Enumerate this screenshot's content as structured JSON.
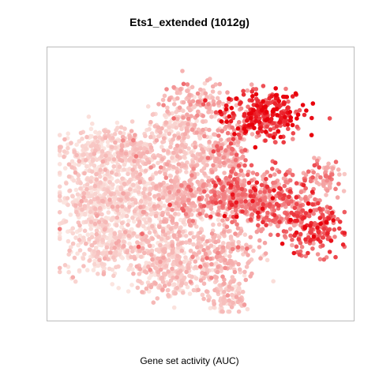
{
  "chart_data": {
    "type": "scatter",
    "title": "Ets1_extended (1012g)",
    "xlabel": "Gene set activity (AUC)",
    "ylabel": "",
    "axes_visible": false,
    "grid": false,
    "colors": {
      "low": "#fbe4df",
      "mid": "#f4a3a3",
      "high": "#e8000b",
      "border": "#bbbbbb"
    },
    "color_scale": "gene set activity, light pink (low) to red (high)",
    "clusters": [
      {
        "x": 0.47,
        "y": 0.82,
        "sx": 0.06,
        "sy": 0.05,
        "n": 120,
        "activity": 0.35
      },
      {
        "x": 0.42,
        "y": 0.74,
        "sx": 0.05,
        "sy": 0.03,
        "n": 70,
        "activity": 0.12
      },
      {
        "x": 0.71,
        "y": 0.78,
        "sx": 0.07,
        "sy": 0.05,
        "n": 260,
        "activity": 0.85
      },
      {
        "x": 0.6,
        "y": 0.72,
        "sx": 0.05,
        "sy": 0.06,
        "n": 90,
        "activity": 0.45
      },
      {
        "x": 0.15,
        "y": 0.63,
        "sx": 0.07,
        "sy": 0.05,
        "n": 260,
        "activity": 0.08
      },
      {
        "x": 0.28,
        "y": 0.63,
        "sx": 0.05,
        "sy": 0.04,
        "n": 120,
        "activity": 0.22
      },
      {
        "x": 0.44,
        "y": 0.62,
        "sx": 0.06,
        "sy": 0.05,
        "n": 180,
        "activity": 0.18
      },
      {
        "x": 0.58,
        "y": 0.62,
        "sx": 0.04,
        "sy": 0.04,
        "n": 90,
        "activity": 0.4
      },
      {
        "x": 0.13,
        "y": 0.45,
        "sx": 0.06,
        "sy": 0.06,
        "n": 280,
        "activity": 0.08
      },
      {
        "x": 0.28,
        "y": 0.45,
        "sx": 0.06,
        "sy": 0.07,
        "n": 300,
        "activity": 0.12
      },
      {
        "x": 0.44,
        "y": 0.45,
        "sx": 0.05,
        "sy": 0.06,
        "n": 220,
        "activity": 0.32
      },
      {
        "x": 0.6,
        "y": 0.46,
        "sx": 0.06,
        "sy": 0.05,
        "n": 280,
        "activity": 0.55
      },
      {
        "x": 0.76,
        "y": 0.44,
        "sx": 0.07,
        "sy": 0.06,
        "n": 300,
        "activity": 0.6
      },
      {
        "x": 0.93,
        "y": 0.53,
        "sx": 0.03,
        "sy": 0.04,
        "n": 60,
        "activity": 0.45
      },
      {
        "x": 0.88,
        "y": 0.33,
        "sx": 0.05,
        "sy": 0.05,
        "n": 160,
        "activity": 0.7
      },
      {
        "x": 0.17,
        "y": 0.27,
        "sx": 0.07,
        "sy": 0.06,
        "n": 260,
        "activity": 0.1
      },
      {
        "x": 0.36,
        "y": 0.24,
        "sx": 0.07,
        "sy": 0.06,
        "n": 260,
        "activity": 0.18
      },
      {
        "x": 0.57,
        "y": 0.24,
        "sx": 0.06,
        "sy": 0.05,
        "n": 200,
        "activity": 0.3
      },
      {
        "x": 0.4,
        "y": 0.14,
        "sx": 0.06,
        "sy": 0.04,
        "n": 140,
        "activity": 0.15
      },
      {
        "x": 0.58,
        "y": 0.08,
        "sx": 0.05,
        "sy": 0.04,
        "n": 100,
        "activity": 0.2
      }
    ]
  }
}
